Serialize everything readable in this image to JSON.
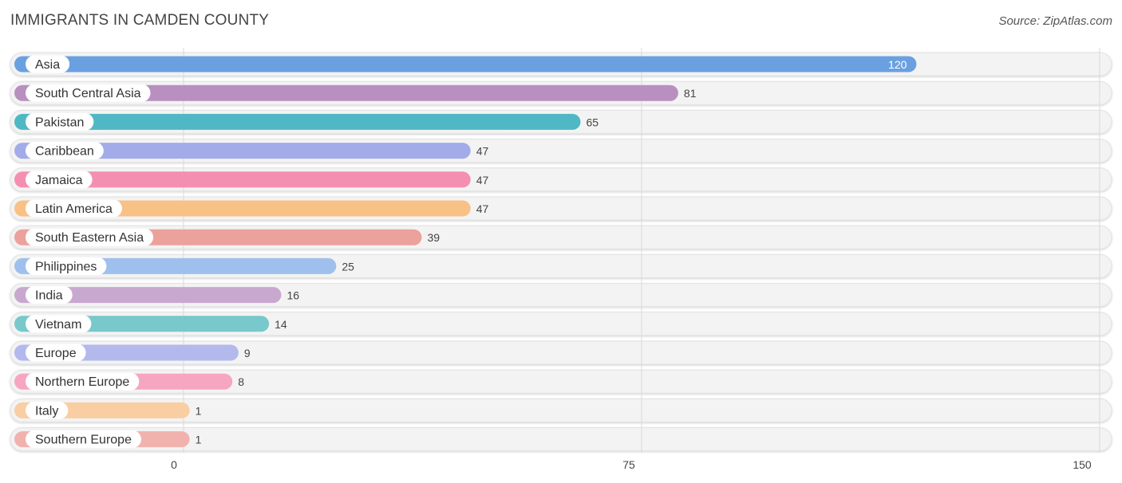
{
  "title": "IMMIGRANTS IN CAMDEN COUNTY",
  "source": "Source: ZipAtlas.com",
  "chart_data": {
    "type": "bar",
    "orientation": "horizontal",
    "title": "IMMIGRANTS IN CAMDEN COUNTY",
    "xlabel": "",
    "ylabel": "",
    "xlim": [
      0,
      150
    ],
    "ticks": [
      0,
      75,
      150
    ],
    "grid": true,
    "categories": [
      "Asia",
      "South Central Asia",
      "Pakistan",
      "Caribbean",
      "Jamaica",
      "Latin America",
      "South Eastern Asia",
      "Philippines",
      "India",
      "Vietnam",
      "Europe",
      "Northern Europe",
      "Italy",
      "Southern Europe"
    ],
    "values": [
      120,
      81,
      65,
      47,
      47,
      47,
      39,
      25,
      16,
      14,
      9,
      8,
      1,
      1
    ],
    "colors": [
      "#6aa0e0",
      "#b98fc0",
      "#4fb8c4",
      "#a3ace8",
      "#f58fb2",
      "#f8c185",
      "#eba19c",
      "#9fc0ec",
      "#c9a8cf",
      "#78c8cc",
      "#b3b9ec",
      "#f6a6c0",
      "#f9cea2",
      "#f1b2ae"
    ]
  }
}
